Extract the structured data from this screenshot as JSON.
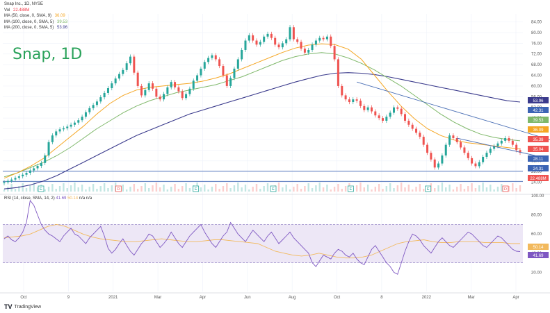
{
  "legend": {
    "title": "Snap Inc., 1D, NYSE",
    "vol": {
      "label": "Vol",
      "value": "22.488M",
      "color": "#f23645"
    },
    "ma_lines": [
      {
        "label": "MA (50, close, 0, SMA, 9)",
        "value": "36.09",
        "color": "#f5a623"
      },
      {
        "label": "MA (100, close, 0, SMA, 5)",
        "value": "39.53",
        "color": "#7fb86a"
      },
      {
        "label": "MA (200, close, 0, SMA, 5)",
        "value": "53.96",
        "color": "#3a3a8c"
      }
    ]
  },
  "annotation_title": "Snap, 1D",
  "rsi_legend": {
    "label": "RSI (14, close, SMA, 14, 2)",
    "rsi": "41.69",
    "sma": "50.14",
    "tail": "n/a n/a"
  },
  "branding": {
    "name": "TradingView"
  },
  "colors": {
    "up": "#26a69a",
    "down": "#ef5350",
    "trendline": "#4a6fb5",
    "support": "#3c64b4",
    "rsi_band": "#ede7f6",
    "rsi_line": "#7e57c2",
    "rsi_sma": "#f2b95c",
    "axis_text": "#555555"
  },
  "chart_data": [
    {
      "type": "candlestick",
      "symbol": "Snap Inc.",
      "interval": "1D",
      "exchange": "NYSE",
      "yaxis_ticks": [
        84.0,
        80.0,
        76.0,
        72.0,
        68.0,
        64.0,
        60.0,
        56.0,
        52.0,
        48.0,
        44.0,
        40.0,
        36.0,
        32.0,
        28.0,
        24.0
      ],
      "ylim": [
        20.5,
        87
      ],
      "xaxis_ticks": [
        "Oct",
        "9",
        "2021",
        "Mar",
        "Apr",
        "Jun",
        "Aug",
        "Oct",
        "8",
        "2022",
        "Mar",
        "Apr"
      ],
      "price_markers": [
        {
          "value": "53.96",
          "color": "#3a3a8c"
        },
        {
          "value": "42.31",
          "color": "#3c64b4"
        },
        {
          "value": "39.53",
          "color": "#7fb86a"
        },
        {
          "value": "36.09",
          "color": "#f5a623"
        },
        {
          "value": "35.38",
          "color": "#ef5350"
        },
        {
          "value": "35.04",
          "color": "#ef5350"
        },
        {
          "value": "28.11",
          "color": "#3c64b4"
        },
        {
          "value": "24.31",
          "color": "#3c64b4"
        },
        {
          "value": "22.488M",
          "color": "#ef5350"
        }
      ],
      "horizontal_levels": [
        28.11,
        24.31
      ],
      "event_markers": [
        "E",
        "D",
        "E",
        "E",
        "E",
        "E",
        "D"
      ],
      "close_series": [
        24,
        24.5,
        25,
        25.6,
        26.2,
        26.8,
        27.5,
        28.4,
        29.2,
        30.1,
        31.2,
        34,
        39,
        41.5,
        43,
        43.8,
        44.2,
        44.8,
        45.5,
        46.3,
        47.2,
        48.5,
        50.2,
        51.7,
        52.9,
        54.2,
        55.8,
        57.4,
        59.2,
        61,
        62.8,
        64.5,
        66,
        68.5,
        71,
        65,
        60,
        56.5,
        58.5,
        61,
        59,
        56,
        55,
        57,
        59.5,
        61.5,
        59.5,
        58,
        55.5,
        57,
        59,
        62,
        64,
        66.5,
        69,
        70.5,
        71.5,
        70,
        67.5,
        64,
        60,
        63,
        66.5,
        70,
        73.5,
        77,
        79,
        77,
        75.5,
        76.5,
        78.5,
        79.5,
        78,
        75.5,
        74.5,
        76,
        77.5,
        82,
        77.5,
        76.5,
        74,
        72.5,
        73.5,
        75.5,
        77,
        78,
        77.5,
        78.5,
        75,
        70,
        60,
        56.5,
        55,
        54,
        55,
        54.5,
        52.5,
        51,
        52,
        50.5,
        49,
        48,
        47,
        48.5,
        50,
        52,
        51.5,
        49.5,
        47,
        45.5,
        44,
        42.5,
        41,
        38,
        35,
        32.5,
        29.5,
        31,
        34,
        38,
        41.5,
        40.5,
        39,
        37,
        35,
        33,
        31,
        30,
        31.5,
        33.5,
        35,
        36.5,
        37.5,
        38.5,
        39.5,
        40.5,
        39.5,
        38,
        36,
        35.04
      ],
      "ma50_series": [
        25.5,
        27.5,
        30,
        33,
        37,
        41,
        45,
        49.5,
        53.5,
        56.5,
        58.5,
        59.5,
        60,
        60.5,
        61,
        61.8,
        63,
        64.5,
        66.5,
        68.5,
        70.5,
        72.5,
        74.2,
        75.3,
        75.8,
        75.5,
        73.8,
        70,
        64,
        58,
        52.5,
        47.8,
        44,
        41.5,
        39.8,
        38.8,
        38.2,
        37.6,
        37,
        36.4
      ],
      "ma100_series": [
        26,
        27.5,
        29.5,
        31.5,
        34,
        37,
        40.5,
        44,
        47,
        50,
        52.5,
        54.5,
        56,
        57.5,
        58.5,
        59.5,
        60.5,
        62,
        63.5,
        65.5,
        67.5,
        69.5,
        71,
        72,
        72.5,
        72,
        70.5,
        68.5,
        66,
        63,
        60,
        56.5,
        53,
        49.5,
        46.5,
        44,
        42,
        40.8,
        40,
        39.5
      ],
      "ma200_series": [
        21.5,
        22,
        23,
        24.5,
        26.5,
        29,
        31.5,
        34,
        36.5,
        39,
        41.5,
        43.5,
        45.5,
        47.5,
        49.5,
        51,
        52.5,
        54,
        55.5,
        57,
        58.5,
        60,
        61.5,
        62.8,
        64,
        64.8,
        65,
        64.8,
        64.3,
        63.5,
        62.5,
        61.5,
        60.5,
        59.5,
        58.5,
        57.5,
        56.5,
        55.5,
        54.5,
        54
      ],
      "trendlines": [
        {
          "from_date_index": 95,
          "from_value": 61.5,
          "to_date_index": 148,
          "to_value": 39.5
        },
        {
          "from_date_index": 122,
          "from_value": 40.5,
          "to_date_index": 143,
          "to_value": 34
        }
      ]
    },
    {
      "type": "line",
      "name": "RSI (14, close, SMA, 14, 2)",
      "yaxis_ticks": [
        100.0,
        80.0,
        60.0,
        40.0,
        20.0
      ],
      "ylim": [
        0,
        100
      ],
      "band": [
        30,
        70
      ],
      "markers": [
        {
          "value": "50.14",
          "color": "#f2b95c"
        },
        {
          "value": "41.69",
          "color": "#7e57c2"
        }
      ],
      "rsi_series": [
        55,
        58,
        54,
        52,
        56,
        62,
        72,
        95,
        90,
        80,
        70,
        64,
        60,
        58,
        55,
        52,
        58,
        62,
        66,
        60,
        58,
        54,
        50,
        56,
        60,
        64,
        68,
        58,
        45,
        40,
        44,
        50,
        55,
        48,
        42,
        38,
        44,
        50,
        54,
        60,
        58,
        52,
        46,
        50,
        55,
        62,
        56,
        50,
        46,
        52,
        58,
        62,
        66,
        70,
        62,
        56,
        50,
        46,
        52,
        58,
        62,
        72,
        66,
        60,
        56,
        52,
        58,
        64,
        60,
        56,
        52,
        58,
        62,
        56,
        50,
        54,
        58,
        62,
        56,
        52,
        48,
        44,
        40,
        30,
        26,
        32,
        38,
        36,
        34,
        40,
        44,
        42,
        38,
        36,
        40,
        34,
        30,
        28,
        36,
        44,
        48,
        42,
        36,
        30,
        26,
        20,
        18,
        30,
        42,
        52,
        60,
        58,
        54,
        48,
        44,
        40,
        46,
        52,
        56,
        52,
        48,
        46,
        50,
        54,
        58,
        62,
        60,
        56,
        52,
        48,
        46,
        50,
        54,
        58,
        56,
        52,
        48,
        44,
        42,
        41.69
      ],
      "sma_series": [
        56,
        57,
        58,
        60,
        64,
        68,
        70,
        68,
        64,
        60,
        57,
        55,
        54,
        53,
        52,
        52,
        53,
        54,
        55,
        54,
        53,
        52,
        52,
        53,
        54,
        54,
        53,
        52,
        51,
        50,
        46,
        42,
        40,
        38,
        37,
        38,
        40,
        38,
        36,
        35,
        35,
        36,
        38,
        42,
        46,
        50,
        52,
        53,
        54,
        52,
        51,
        51,
        52,
        52,
        52,
        51,
        51,
        51,
        50,
        50
      ]
    }
  ]
}
